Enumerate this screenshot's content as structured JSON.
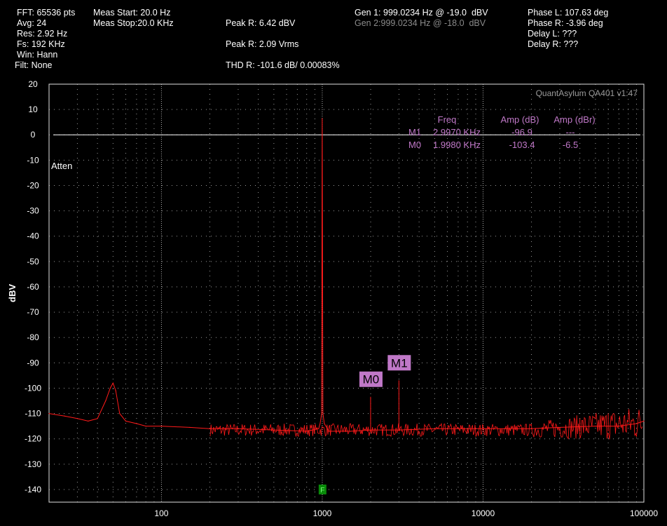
{
  "header": {
    "fft": "FFT: 65536 pts",
    "avg": "Avg: 24",
    "res": "Res: 2.92 Hz",
    "fs": "Fs: 192 KHz",
    "win": "Win: Hann",
    "filt": "Filt: None",
    "meas_start": "Meas Start: 20.0 Hz",
    "meas_stop": "Meas Stop:20.0 KHz",
    "peak_dbv": "Peak R: 6.42 dBV",
    "peak_vrms": "Peak R: 2.09 Vrms",
    "thd": "THD R: -101.6 dB/ 0.00083%",
    "gen1": "Gen 1: 999.0234 Hz @ -19.0  dBV",
    "gen2": "Gen 2:999.0234 Hz @ -18.0  dBV",
    "phase_l": "Phase L: 107.63 deg",
    "phase_r": "Phase R: -3.96 deg",
    "delay_l": "Delay L: ???",
    "delay_r": "Delay R: ???"
  },
  "colors": {
    "background": "#000000",
    "grid": "#9a9a9a",
    "trace": "#ff1a1a",
    "marker_text": "#c078c8",
    "marker_label_bg": "#c078c8",
    "flag": "#0a8a0a"
  },
  "chart_data": {
    "type": "line",
    "title": "",
    "xlabel": "",
    "ylabel": "dBV",
    "xscale": "log",
    "xlim": [
      20,
      100000
    ],
    "ylim": [
      -145,
      20
    ],
    "x_ticks": [
      100,
      1000,
      10000,
      100000
    ],
    "x_tick_labels": [
      "100",
      "1000",
      "10000",
      "100000"
    ],
    "y_ticks": [
      20,
      10,
      0,
      -10,
      -20,
      -30,
      -40,
      -50,
      -60,
      -70,
      -80,
      -90,
      -100,
      -110,
      -120,
      -130,
      -140
    ],
    "grid": true,
    "watermark": "QuantAsylum QA401 v1:47",
    "atten_label": "Atten",
    "reference_line_y": 0,
    "series": [
      {
        "x": [
          20,
          25,
          30,
          35,
          40,
          45,
          48,
          50,
          52,
          55,
          60,
          70,
          80,
          100,
          150,
          200,
          300,
          500,
          800,
          950,
          970,
          990,
          999,
          1010,
          1030,
          1100,
          1500,
          2000,
          3000,
          5000,
          10000,
          20000,
          30000,
          50000,
          70000,
          90000,
          100000
        ],
        "y": [
          -110,
          -111,
          -112,
          -113,
          -112,
          -105,
          -100,
          -98,
          -101,
          -110,
          -113,
          -114,
          -115,
          -115,
          -115.5,
          -116,
          -116,
          -116.5,
          -117,
          -116,
          -114,
          -110,
          6.42,
          -110,
          -114,
          -117,
          -117,
          -116.5,
          -116.5,
          -116,
          -116,
          -116,
          -115.5,
          -115,
          -115,
          -114,
          -113
        ]
      }
    ],
    "spikes": [
      {
        "x": 1998,
        "y": -103.4
      },
      {
        "x": 2997,
        "y": -96.9
      },
      {
        "x": 40000,
        "y": -112
      },
      {
        "x": 60000,
        "y": -110
      }
    ],
    "markers_table": {
      "headers": [
        "Freq",
        "Amp (dB)",
        "Amp (dBr)"
      ],
      "rows": [
        {
          "name": "M1",
          "freq": "2.9970 KHz",
          "amp_db": "-96.9",
          "amp_dbr": "---"
        },
        {
          "name": "M0",
          "freq": "1.9980 KHz",
          "amp_db": "-103.4",
          "amp_dbr": "-6.5"
        }
      ]
    },
    "marker_labels": [
      {
        "name": "M1",
        "x": 2997,
        "y": -96.9
      },
      {
        "name": "M0",
        "x": 1998,
        "y": -103.4
      }
    ],
    "flag": {
      "label": "F",
      "x": 999,
      "y": -140
    }
  }
}
